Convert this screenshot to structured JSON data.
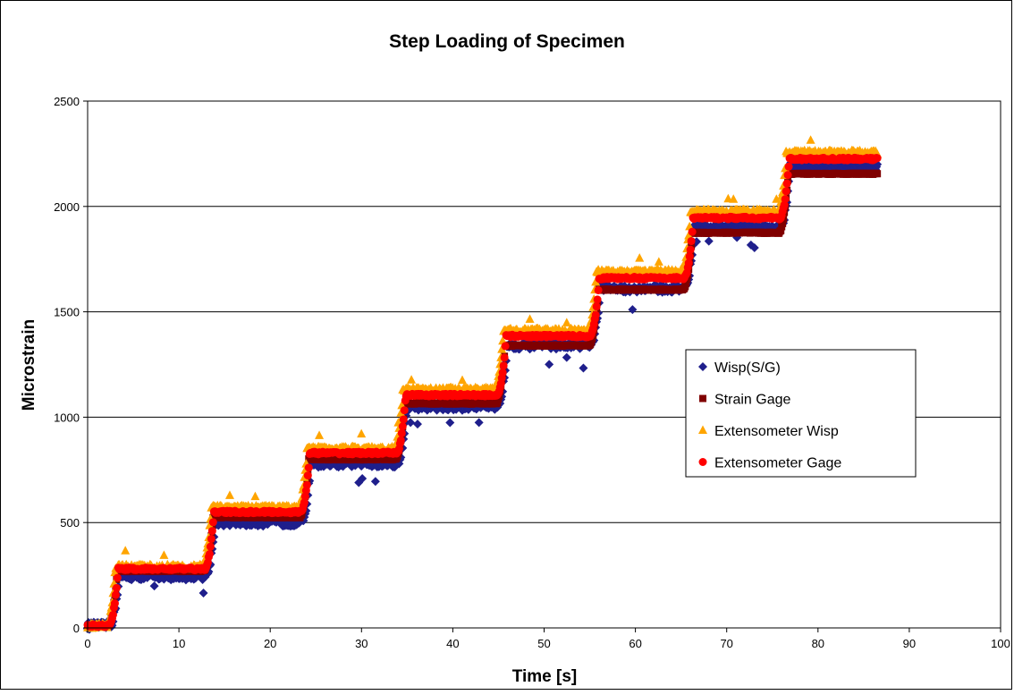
{
  "chart_data": {
    "type": "scatter",
    "title": "Step Loading of Specimen",
    "xlabel": "Time [s]",
    "ylabel": "Microstrain",
    "xlim": [
      0,
      100
    ],
    "ylim": [
      0,
      2500
    ],
    "xticks": [
      0,
      10,
      20,
      30,
      40,
      50,
      60,
      70,
      80,
      90,
      100
    ],
    "yticks": [
      0,
      500,
      1000,
      1500,
      2000,
      2500
    ],
    "grid": "horizontal",
    "legend_position": "right",
    "x_start": 0,
    "x_end": 86.5,
    "step_times": [
      3,
      13.5,
      24,
      34.5,
      45.5,
      55.7,
      66,
      76.5
    ],
    "series": [
      {
        "name": "Wisp(S/G)",
        "marker": "diamond",
        "color": "#1f1f8c",
        "levels": [
          10,
          245,
          500,
          780,
          1050,
          1340,
          1610,
          1900,
          2190
        ]
      },
      {
        "name": "Strain Gage",
        "marker": "square",
        "color": "#800000",
        "levels": [
          10,
          270,
          525,
          800,
          1065,
          1340,
          1605,
          1875,
          2155
        ]
      },
      {
        "name": "Extensometer Wisp",
        "marker": "triangle",
        "color": "#ffa500",
        "levels": [
          10,
          290,
          570,
          850,
          1130,
          1410,
          1690,
          1975,
          2255
        ]
      },
      {
        "name": "Extensometer Gage",
        "marker": "circle",
        "color": "#ff0000",
        "levels": [
          10,
          280,
          550,
          830,
          1105,
          1385,
          1660,
          1945,
          2225
        ]
      }
    ]
  }
}
